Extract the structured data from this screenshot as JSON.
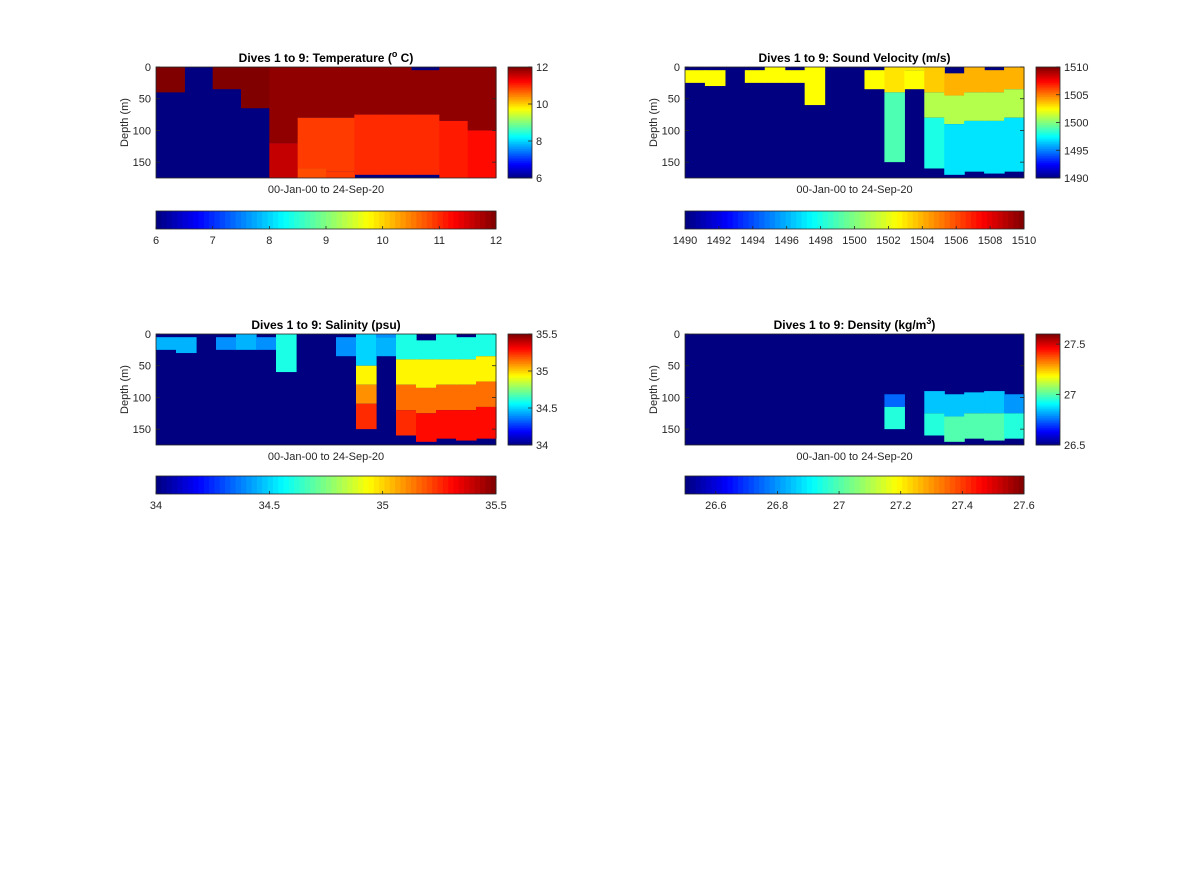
{
  "figure": {
    "background": "#ffffff",
    "colormap": "jet"
  },
  "chart_data": [
    {
      "type": "heatmap",
      "title": "Dives 1 to 9: Temperature (",
      "title_sup": "o",
      "title_tail": " C)",
      "xlabel": "00-Jan-00 to 24-Sep-20",
      "ylabel": "Depth (m)",
      "ylim": [
        0,
        175
      ],
      "yticks": [
        0,
        50,
        100,
        150
      ],
      "clim": [
        6,
        12
      ],
      "colorbar_ticks": [
        6,
        8,
        10,
        12
      ],
      "h_colorbar_ticks": [
        6,
        7,
        8,
        9,
        10,
        11,
        12
      ],
      "h_colorbar_labels": [
        "6",
        "7",
        "8",
        "9",
        "10",
        "11",
        "12"
      ],
      "columns": [
        [
          [
            0,
            40,
            12
          ]
        ],
        [],
        [
          [
            0,
            35,
            12
          ]
        ],
        [
          [
            0,
            65,
            12
          ]
        ],
        [
          [
            0,
            120,
            11.9
          ],
          [
            120,
            175,
            11.6
          ]
        ],
        [
          [
            0,
            80,
            11.9
          ],
          [
            80,
            160,
            10.9
          ],
          [
            160,
            175,
            10.8
          ]
        ],
        [
          [
            0,
            80,
            11.9
          ],
          [
            80,
            165,
            10.9
          ],
          [
            165,
            175,
            10.9
          ]
        ],
        [
          [
            0,
            75,
            11.9
          ],
          [
            75,
            170,
            11.0
          ]
        ],
        [
          [
            0,
            75,
            11.9
          ],
          [
            75,
            170,
            11.0
          ]
        ],
        [
          [
            5,
            75,
            11.9
          ],
          [
            75,
            170,
            11.0
          ]
        ],
        [
          [
            0,
            85,
            11.9
          ],
          [
            85,
            175,
            11.1
          ]
        ],
        [
          [
            0,
            100,
            11.9
          ],
          [
            100,
            175,
            11.2
          ]
        ]
      ]
    },
    {
      "type": "heatmap",
      "title": "Dives 1 to 9: Sound Velocity (m/s)",
      "title_sup": "",
      "title_tail": "",
      "xlabel": "00-Jan-00 to 24-Sep-20",
      "ylabel": "Depth (m)",
      "ylim": [
        0,
        175
      ],
      "yticks": [
        0,
        50,
        100,
        150
      ],
      "clim": [
        1490,
        1510
      ],
      "colorbar_ticks": [
        1490,
        1495,
        1500,
        1505,
        1510
      ],
      "h_colorbar_ticks": [
        1490,
        1492,
        1494,
        1496,
        1498,
        1500,
        1502,
        1504,
        1506,
        1508,
        1510
      ],
      "h_colorbar_labels": [
        "1490",
        "1492",
        "1494",
        "1496",
        "1498",
        "1500",
        "1502",
        "1504",
        "1506",
        "1508",
        "1510"
      ],
      "columns": [
        [
          [
            5,
            25,
            1502.5
          ]
        ],
        [
          [
            5,
            30,
            1502.5
          ]
        ],
        [],
        [
          [
            5,
            25,
            1502.5
          ]
        ],
        [
          [
            0,
            25,
            1502.5
          ]
        ],
        [
          [
            5,
            25,
            1502.5
          ]
        ],
        [
          [
            0,
            60,
            1502.5
          ]
        ],
        [],
        [],
        [
          [
            5,
            35,
            1502.5
          ]
        ],
        [
          [
            0,
            40,
            1503
          ],
          [
            40,
            150,
            1499
          ]
        ],
        [
          [
            0,
            5,
            1503
          ],
          [
            5,
            35,
            1502.5
          ]
        ],
        [
          [
            0,
            40,
            1503.5
          ],
          [
            40,
            80,
            1501
          ],
          [
            80,
            160,
            1498
          ]
        ],
        [
          [
            10,
            45,
            1504
          ],
          [
            45,
            90,
            1501
          ],
          [
            90,
            170,
            1497
          ]
        ],
        [
          [
            0,
            40,
            1504
          ],
          [
            40,
            85,
            1501
          ],
          [
            85,
            165,
            1497
          ]
        ],
        [
          [
            5,
            40,
            1504
          ],
          [
            40,
            85,
            1501
          ],
          [
            85,
            168,
            1497
          ]
        ],
        [
          [
            0,
            35,
            1504
          ],
          [
            35,
            80,
            1501
          ],
          [
            80,
            165,
            1497
          ]
        ]
      ]
    },
    {
      "type": "heatmap",
      "title": "Dives 1 to 9: Salinity (psu)",
      "title_sup": "",
      "title_tail": "",
      "xlabel": "00-Jan-00 to 24-Sep-20",
      "ylabel": "Depth (m)",
      "ylim": [
        0,
        175
      ],
      "yticks": [
        0,
        50,
        100,
        150
      ],
      "clim": [
        34,
        35.5
      ],
      "colorbar_ticks": [
        34,
        34.5,
        35,
        35.5
      ],
      "h_colorbar_ticks": [
        34,
        34.5,
        35,
        35.5
      ],
      "h_colorbar_labels": [
        "34",
        "34.5",
        "35",
        "35.5"
      ],
      "columns": [
        [
          [
            5,
            25,
            34.45
          ]
        ],
        [
          [
            5,
            30,
            34.45
          ]
        ],
        [],
        [
          [
            5,
            25,
            34.4
          ]
        ],
        [
          [
            0,
            25,
            34.45
          ]
        ],
        [
          [
            5,
            25,
            34.4
          ]
        ],
        [
          [
            0,
            60,
            34.6
          ]
        ],
        [],
        [],
        [
          [
            5,
            35,
            34.4
          ]
        ],
        [
          [
            0,
            50,
            34.5
          ],
          [
            50,
            80,
            34.95
          ],
          [
            80,
            110,
            35.1
          ],
          [
            110,
            150,
            35.25
          ]
        ],
        [
          [
            0,
            5,
            34.4
          ],
          [
            5,
            35,
            34.45
          ]
        ],
        [
          [
            0,
            40,
            34.6
          ],
          [
            40,
            80,
            34.95
          ],
          [
            80,
            120,
            35.15
          ],
          [
            120,
            160,
            35.25
          ]
        ],
        [
          [
            10,
            40,
            34.6
          ],
          [
            40,
            85,
            34.95
          ],
          [
            85,
            125,
            35.15
          ],
          [
            125,
            170,
            35.3
          ]
        ],
        [
          [
            0,
            40,
            34.6
          ],
          [
            40,
            80,
            34.95
          ],
          [
            80,
            120,
            35.15
          ],
          [
            120,
            165,
            35.3
          ]
        ],
        [
          [
            5,
            40,
            34.6
          ],
          [
            40,
            80,
            34.95
          ],
          [
            80,
            120,
            35.15
          ],
          [
            120,
            168,
            35.3
          ]
        ],
        [
          [
            0,
            35,
            34.6
          ],
          [
            35,
            75,
            34.95
          ],
          [
            75,
            115,
            35.15
          ],
          [
            115,
            165,
            35.3
          ]
        ]
      ]
    },
    {
      "type": "heatmap",
      "title": "Dives 1 to 9: Density (kg/m",
      "title_sup": "3",
      "title_tail": ")",
      "xlabel": "00-Jan-00 to 24-Sep-20",
      "ylabel": "Depth (m)",
      "ylim": [
        0,
        175
      ],
      "yticks": [
        0,
        50,
        100,
        150
      ],
      "clim": [
        26.5,
        27.6
      ],
      "colorbar_ticks": [
        26.5,
        27,
        27.5
      ],
      "h_colorbar_ticks": [
        26.6,
        26.8,
        27,
        27.2,
        27.4,
        27.6
      ],
      "h_colorbar_labels": [
        "26.6",
        "26.8",
        "27",
        "27.2",
        "27.4",
        "27.6"
      ],
      "columns": [
        [],
        [],
        [],
        [],
        [],
        [],
        [],
        [],
        [],
        [],
        [
          [
            95,
            115,
            26.75
          ],
          [
            115,
            150,
            26.95
          ]
        ],
        [],
        [
          [
            90,
            125,
            26.85
          ],
          [
            125,
            160,
            26.95
          ]
        ],
        [
          [
            95,
            130,
            26.85
          ],
          [
            130,
            170,
            27.0
          ]
        ],
        [
          [
            92,
            125,
            26.85
          ],
          [
            125,
            165,
            27.0
          ]
        ],
        [
          [
            90,
            125,
            26.85
          ],
          [
            125,
            168,
            27.0
          ]
        ],
        [
          [
            95,
            125,
            26.8
          ],
          [
            125,
            165,
            26.95
          ]
        ]
      ]
    }
  ]
}
